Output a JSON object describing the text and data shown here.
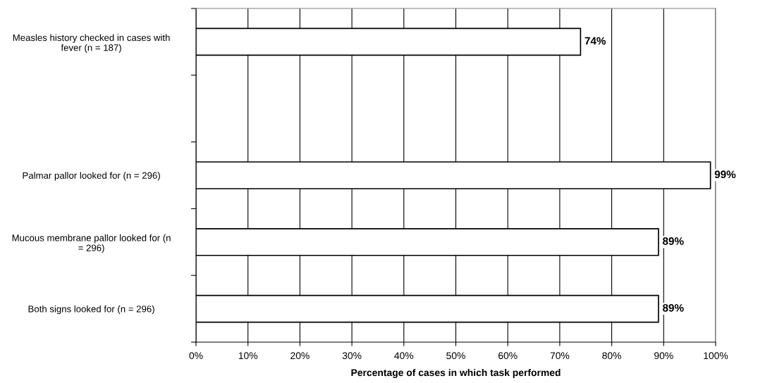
{
  "chart_data": {
    "type": "bar",
    "orientation": "horizontal",
    "categories": [
      "Measles history checked in cases with\nfever (n = 187)",
      null,
      "Palmar pallor looked for (n = 296)",
      "Mucous membrane pallor looked for (n\n= 296)",
      "Both signs looked for (n = 296)"
    ],
    "values": [
      74,
      null,
      99,
      89,
      89
    ],
    "value_labels": [
      "74%",
      null,
      "99%",
      "89%",
      "89%"
    ],
    "color": "#ffffff",
    "xlim": [
      0,
      100
    ],
    "xticks": [
      {
        "value": 0,
        "label": "0%"
      },
      {
        "value": 10,
        "label": "10%"
      },
      {
        "value": 20,
        "label": "20%"
      },
      {
        "value": 30,
        "label": "30%"
      },
      {
        "value": 40,
        "label": "40%"
      },
      {
        "value": 50,
        "label": "50%"
      },
      {
        "value": 60,
        "label": "60%"
      },
      {
        "value": 70,
        "label": "70%"
      },
      {
        "value": 80,
        "label": "80%"
      },
      {
        "value": 90,
        "label": "90%"
      },
      {
        "value": 100,
        "label": "100%"
      }
    ],
    "xlabel": "Percentage of cases in which task performed",
    "grid": "x"
  }
}
